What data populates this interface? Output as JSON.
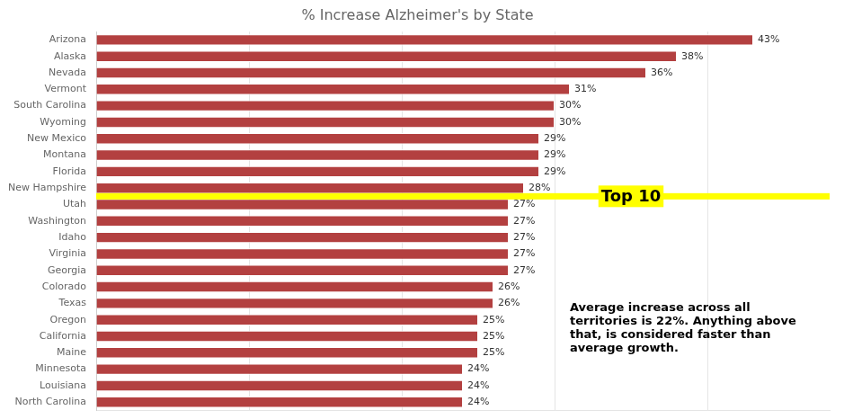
{
  "chart_data": {
    "type": "bar",
    "orientation": "horizontal",
    "title": "% Increase Alzheimer's by State",
    "categories": [
      "Arizona",
      "Alaska",
      "Nevada",
      "Vermont",
      "South Carolina",
      "Wyoming",
      "New Mexico",
      "Montana",
      "Florida",
      "New Hampshire",
      "Utah",
      "Washington",
      "Idaho",
      "Virginia",
      "Georgia",
      "Colorado",
      "Texas",
      "Oregon",
      "California",
      "Maine",
      "Minnesota",
      "Louisiana",
      "North Carolina"
    ],
    "values": [
      43,
      38,
      36,
      31,
      30,
      30,
      29,
      29,
      29,
      28,
      27,
      27,
      27,
      27,
      27,
      26,
      26,
      25,
      25,
      25,
      24,
      24,
      24
    ],
    "value_labels": [
      "43%",
      "38%",
      "36%",
      "31%",
      "30%",
      "30%",
      "29%",
      "29%",
      "29%",
      "28%",
      "27%",
      "27%",
      "27%",
      "27%",
      "27%",
      "26%",
      "26%",
      "25%",
      "25%",
      "25%",
      "24%",
      "24%",
      "24%"
    ],
    "data_labels": true,
    "color": "#b34040",
    "xlim": [
      0,
      48
    ],
    "xticks": [
      0,
      10,
      20,
      30,
      40
    ],
    "tick_labels": "y",
    "grid": true,
    "annotations": [
      "Top 10",
      "Average increase across all\nterritories is 22%. Anything above\nthat, is considered faster than\naverage growth."
    ]
  }
}
